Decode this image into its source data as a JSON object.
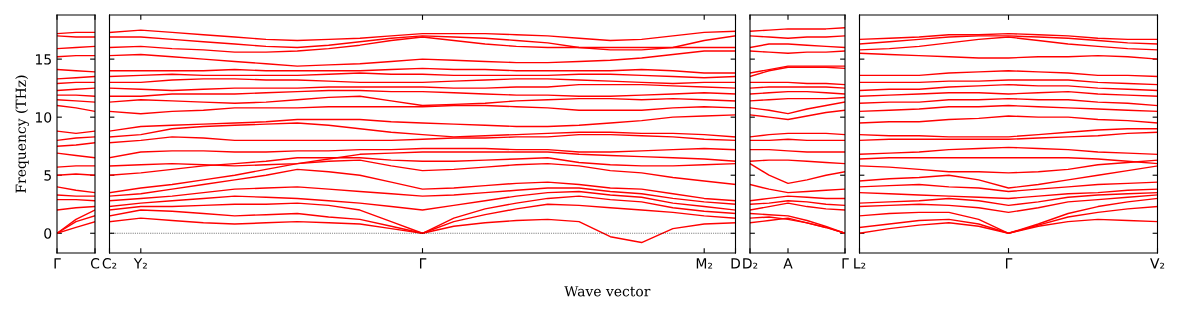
{
  "chart_data": [
    {
      "type": "line",
      "ylabel": "Frequency (THz)",
      "categories": [
        "Γ",
        null,
        "C"
      ],
      "ylim": [
        -1.7,
        18.8
      ],
      "yticks": [
        0,
        5,
        10,
        15
      ],
      "legend": false,
      "grid": false,
      "line_style": "solid",
      "marker": "none",
      "series": [
        {
          "color": "#ff0000",
          "values": [
            0,
            0.5,
            1.0
          ]
        },
        {
          "color": "#ff0000",
          "values": [
            0,
            1.0,
            1.5
          ]
        },
        {
          "color": "#ff0000",
          "values": [
            0,
            1.2,
            2.0
          ]
        },
        {
          "color": "#ff0000",
          "values": [
            2.0,
            2.2,
            2.3
          ]
        },
        {
          "color": "#ff0000",
          "values": [
            2.9,
            2.9,
            2.8
          ]
        },
        {
          "color": "#ff0000",
          "values": [
            3.3,
            3.2,
            3.2
          ]
        },
        {
          "color": "#ff0000",
          "values": [
            4.0,
            3.7,
            3.5
          ]
        },
        {
          "color": "#ff0000",
          "values": [
            5.0,
            5.1,
            5.0
          ]
        },
        {
          "color": "#ff0000",
          "values": [
            5.7,
            5.8,
            5.8
          ]
        },
        {
          "color": "#ff0000",
          "values": [
            6.9,
            6.7,
            6.5
          ]
        },
        {
          "color": "#ff0000",
          "values": [
            7.5,
            7.6,
            7.8
          ]
        },
        {
          "color": "#ff0000",
          "values": [
            8.0,
            8.2,
            8.3
          ]
        },
        {
          "color": "#ff0000",
          "values": [
            8.8,
            8.6,
            8.8
          ]
        },
        {
          "color": "#ff0000",
          "values": [
            11.0,
            10.8,
            10.5
          ]
        },
        {
          "color": "#ff0000",
          "values": [
            11.5,
            11.4,
            11.3
          ]
        },
        {
          "color": "#ff0000",
          "values": [
            11.9,
            11.9,
            11.8
          ]
        },
        {
          "color": "#ff0000",
          "values": [
            12.3,
            12.4,
            12.5
          ]
        },
        {
          "color": "#ff0000",
          "values": [
            12.9,
            13.0,
            13.0
          ]
        },
        {
          "color": "#ff0000",
          "values": [
            13.3,
            13.4,
            13.5
          ]
        },
        {
          "color": "#ff0000",
          "values": [
            14.1,
            14.0,
            13.9
          ]
        },
        {
          "color": "#ff0000",
          "values": [
            15.2,
            15.3,
            15.3
          ]
        },
        {
          "color": "#ff0000",
          "values": [
            15.9,
            16.0,
            16.1
          ]
        },
        {
          "color": "#ff0000",
          "values": [
            17.0,
            16.9,
            16.9
          ]
        },
        {
          "color": "#ff0000",
          "values": [
            17.2,
            17.3,
            17.3
          ]
        }
      ]
    },
    {
      "type": "line",
      "xlabel": "Wave vector",
      "tick_labels": "x",
      "categories": [
        "C₂",
        "Y₂",
        null,
        null,
        null,
        null,
        null,
        null,
        null,
        null,
        "Γ",
        null,
        null,
        null,
        null,
        null,
        null,
        null,
        null,
        "M₂",
        "D"
      ],
      "ylim": [
        -1.7,
        18.8
      ],
      "yticks": [
        0,
        5,
        10,
        15
      ],
      "legend": false,
      "grid": false,
      "line_style": "solid",
      "marker": "none",
      "ref_lines": [
        {
          "axis": "y",
          "value": 0,
          "color": "#000000",
          "line_style": "dotted"
        }
      ],
      "series": [
        {
          "color": "#ff0000",
          "values": [
            1.0,
            1.3,
            1.1,
            0.9,
            0.8,
            0.9,
            1.0,
            0.9,
            0.8,
            0.4,
            0,
            0.6,
            0.9,
            1.1,
            1.2,
            1.0,
            -0.3,
            -0.8,
            0.4,
            0.8,
            0.9
          ]
        },
        {
          "color": "#ff0000",
          "values": [
            1.5,
            2.0,
            1.9,
            1.7,
            1.5,
            1.6,
            1.7,
            1.4,
            1.2,
            0.6,
            0,
            1.0,
            1.6,
            2.1,
            2.5,
            2.4,
            2.2,
            2.0,
            1.8,
            1.5,
            1.3
          ]
        },
        {
          "color": "#ff0000",
          "values": [
            2.0,
            2.3,
            2.3,
            2.4,
            2.5,
            2.5,
            2.6,
            2.4,
            2.0,
            1.0,
            0,
            1.3,
            2.1,
            2.6,
            3.0,
            3.2,
            2.9,
            2.7,
            2.2,
            1.9,
            1.7
          ]
        },
        {
          "color": "#ff0000",
          "values": [
            2.3,
            2.6,
            2.8,
            3.0,
            3.2,
            3.1,
            3.0,
            2.8,
            2.6,
            2.3,
            2.0,
            2.4,
            2.8,
            3.2,
            3.5,
            3.6,
            3.3,
            3.1,
            2.6,
            2.3,
            2.0
          ]
        },
        {
          "color": "#ff0000",
          "values": [
            2.8,
            3.0,
            3.2,
            3.5,
            3.8,
            3.9,
            4.0,
            3.8,
            3.6,
            3.4,
            3.2,
            3.3,
            3.5,
            3.7,
            3.9,
            3.9,
            3.6,
            3.4,
            3.0,
            2.7,
            2.5
          ]
        },
        {
          "color": "#ff0000",
          "values": [
            3.2,
            3.4,
            3.8,
            4.2,
            4.6,
            5.0,
            5.5,
            5.3,
            5.0,
            4.4,
            3.8,
            3.9,
            4.1,
            4.3,
            4.4,
            4.2,
            3.9,
            3.8,
            3.4,
            3.0,
            2.8
          ]
        },
        {
          "color": "#ff0000",
          "values": [
            3.5,
            3.9,
            4.2,
            4.6,
            5.0,
            5.5,
            6.0,
            6.2,
            6.3,
            5.8,
            5.4,
            5.5,
            5.7,
            5.9,
            6.0,
            5.8,
            5.4,
            5.2,
            4.8,
            4.5,
            4.2
          ]
        },
        {
          "color": "#ff0000",
          "values": [
            5.0,
            5.2,
            5.5,
            5.8,
            6.0,
            6.2,
            6.5,
            6.5,
            6.5,
            6.3,
            6.2,
            6.2,
            6.3,
            6.4,
            6.5,
            6.1,
            5.9,
            5.8,
            5.8,
            5.9,
            6.0
          ]
        },
        {
          "color": "#ff0000",
          "values": [
            5.8,
            5.9,
            6.0,
            5.9,
            5.8,
            5.9,
            6.0,
            6.4,
            6.8,
            6.9,
            7.0,
            7.0,
            7.0,
            7.0,
            7.0,
            6.8,
            6.7,
            6.6,
            6.5,
            6.4,
            6.2
          ]
        },
        {
          "color": "#ff0000",
          "values": [
            6.5,
            7.0,
            7.1,
            7.1,
            7.0,
            7.0,
            7.1,
            7.1,
            7.2,
            7.2,
            7.3,
            7.3,
            7.3,
            7.2,
            7.2,
            7.0,
            7.0,
            7.1,
            7.2,
            7.3,
            7.2
          ]
        },
        {
          "color": "#ff0000",
          "values": [
            7.8,
            8.0,
            8.3,
            8.2,
            8.0,
            8.0,
            8.0,
            8.0,
            8.0,
            8.0,
            8.1,
            8.2,
            8.2,
            8.3,
            8.3,
            8.5,
            8.5,
            8.4,
            8.3,
            8.1,
            8.0
          ]
        },
        {
          "color": "#ff0000",
          "values": [
            8.3,
            8.5,
            9.0,
            9.2,
            9.3,
            9.4,
            9.5,
            9.3,
            9.0,
            8.7,
            8.5,
            8.3,
            8.4,
            8.5,
            8.6,
            8.7,
            8.7,
            8.6,
            8.6,
            8.5,
            8.3
          ]
        },
        {
          "color": "#ff0000",
          "values": [
            8.8,
            9.2,
            9.3,
            9.4,
            9.5,
            9.6,
            9.8,
            9.8,
            9.8,
            9.6,
            9.5,
            9.4,
            9.3,
            9.2,
            9.2,
            9.3,
            9.5,
            9.7,
            10.0,
            10.1,
            10.2
          ]
        },
        {
          "color": "#ff0000",
          "values": [
            10.5,
            10.3,
            10.5,
            10.6,
            10.8,
            10.8,
            10.8,
            10.9,
            10.9,
            10.9,
            10.9,
            11.0,
            11.0,
            10.9,
            10.8,
            10.6,
            10.6,
            10.6,
            10.8,
            10.9,
            10.8
          ]
        },
        {
          "color": "#ff0000",
          "values": [
            11.3,
            11.5,
            11.4,
            11.3,
            11.2,
            11.3,
            11.5,
            11.7,
            11.8,
            11.4,
            11.0,
            11.1,
            11.2,
            11.4,
            11.5,
            11.6,
            11.6,
            11.5,
            11.6,
            11.5,
            11.4
          ]
        },
        {
          "color": "#ff0000",
          "values": [
            11.8,
            11.8,
            12.0,
            12.0,
            12.0,
            12.1,
            12.2,
            12.3,
            12.3,
            12.2,
            12.2,
            12.1,
            12.0,
            11.9,
            11.9,
            11.8,
            11.8,
            11.9,
            12.0,
            12.1,
            12.0
          ]
        },
        {
          "color": "#ff0000",
          "values": [
            12.5,
            12.4,
            12.3,
            12.4,
            12.5,
            12.5,
            12.5,
            12.6,
            12.6,
            12.6,
            12.6,
            12.5,
            12.5,
            12.6,
            12.6,
            12.8,
            12.8,
            12.8,
            12.7,
            12.6,
            12.5
          ]
        },
        {
          "color": "#ff0000",
          "values": [
            13.0,
            13.0,
            13.2,
            13.3,
            13.3,
            13.2,
            13.2,
            13.1,
            13.0,
            13.0,
            13.0,
            13.1,
            13.2,
            13.3,
            13.3,
            13.2,
            13.1,
            13.0,
            12.9,
            13.0,
            13.0
          ]
        },
        {
          "color": "#ff0000",
          "values": [
            13.5,
            13.6,
            13.7,
            13.6,
            13.6,
            13.6,
            13.6,
            13.7,
            13.8,
            13.7,
            13.7,
            13.6,
            13.6,
            13.6,
            13.6,
            13.7,
            13.7,
            13.6,
            13.5,
            13.4,
            13.5
          ]
        },
        {
          "color": "#ff0000",
          "values": [
            14.0,
            14.0,
            14.0,
            14.0,
            14.1,
            14.0,
            14.0,
            14.0,
            14.0,
            14.1,
            14.2,
            14.1,
            14.1,
            14.0,
            14.0,
            14.0,
            14.0,
            14.1,
            14.0,
            13.8,
            13.8
          ]
        },
        {
          "color": "#ff0000",
          "values": [
            15.3,
            15.4,
            15.2,
            15.0,
            14.8,
            14.6,
            14.4,
            14.5,
            14.6,
            14.8,
            15.0,
            14.9,
            14.8,
            14.7,
            14.7,
            14.8,
            14.9,
            15.1,
            15.4,
            15.7,
            15.7
          ]
        },
        {
          "color": "#ff0000",
          "values": [
            16.0,
            16.1,
            15.9,
            15.8,
            15.6,
            15.6,
            15.7,
            15.9,
            16.2,
            16.6,
            16.9,
            16.6,
            16.3,
            16.1,
            16.0,
            16.0,
            16.0,
            16.0,
            16.0,
            16.0,
            16.0
          ]
        },
        {
          "color": "#ff0000",
          "values": [
            16.9,
            16.9,
            16.7,
            16.5,
            16.3,
            16.1,
            16.0,
            16.2,
            16.5,
            16.8,
            17.0,
            16.9,
            16.8,
            16.6,
            16.4,
            16.0,
            15.8,
            15.8,
            16.0,
            16.6,
            17.0
          ]
        },
        {
          "color": "#ff0000",
          "values": [
            17.3,
            17.5,
            17.3,
            17.1,
            16.9,
            16.7,
            16.6,
            16.7,
            16.8,
            17.0,
            17.2,
            17.2,
            17.2,
            17.1,
            17.0,
            16.8,
            16.6,
            16.7,
            17.0,
            17.3,
            17.4
          ]
        }
      ]
    },
    {
      "type": "line",
      "tick_labels": "x",
      "categories": [
        "D₂",
        null,
        "A",
        null,
        null,
        "Γ"
      ],
      "ylim": [
        -1.7,
        18.8
      ],
      "yticks": [
        0,
        5,
        10,
        15
      ],
      "legend": false,
      "grid": false,
      "line_style": "solid",
      "marker": "none",
      "series": [
        {
          "color": "#ff0000",
          "values": [
            0.9,
            1.1,
            1.3,
            0.9,
            0.5,
            0
          ]
        },
        {
          "color": "#ff0000",
          "values": [
            1.3,
            1.4,
            1.2,
            0.9,
            0.5,
            0
          ]
        },
        {
          "color": "#ff0000",
          "values": [
            1.7,
            1.6,
            1.5,
            1.1,
            0.6,
            0
          ]
        },
        {
          "color": "#ff0000",
          "values": [
            2.0,
            2.3,
            2.6,
            2.3,
            2.1,
            2.0
          ]
        },
        {
          "color": "#ff0000",
          "values": [
            2.5,
            2.6,
            2.8,
            2.7,
            2.5,
            2.4
          ]
        },
        {
          "color": "#ff0000",
          "values": [
            2.8,
            3.0,
            3.2,
            3.1,
            3.0,
            3.0
          ]
        },
        {
          "color": "#ff0000",
          "values": [
            4.2,
            3.8,
            3.5,
            3.6,
            3.7,
            3.8
          ]
        },
        {
          "color": "#ff0000",
          "values": [
            6.0,
            5.0,
            4.3,
            4.6,
            5.0,
            5.3
          ]
        },
        {
          "color": "#ff0000",
          "values": [
            6.2,
            6.3,
            6.3,
            6.2,
            6.1,
            6.0
          ]
        },
        {
          "color": "#ff0000",
          "values": [
            7.2,
            7.2,
            7.1,
            7.0,
            7.0,
            7.0
          ]
        },
        {
          "color": "#ff0000",
          "values": [
            8.0,
            8.0,
            8.1,
            8.0,
            8.0,
            8.0
          ]
        },
        {
          "color": "#ff0000",
          "values": [
            8.3,
            8.5,
            8.6,
            8.6,
            8.6,
            8.5
          ]
        },
        {
          "color": "#ff0000",
          "values": [
            10.2,
            10.0,
            9.8,
            10.1,
            10.4,
            10.6
          ]
        },
        {
          "color": "#ff0000",
          "values": [
            10.8,
            10.6,
            10.3,
            10.7,
            11.0,
            11.3
          ]
        },
        {
          "color": "#ff0000",
          "values": [
            11.4,
            11.5,
            11.6,
            11.6,
            11.6,
            11.7
          ]
        },
        {
          "color": "#ff0000",
          "values": [
            12.0,
            12.1,
            12.2,
            12.2,
            12.1,
            12.0
          ]
        },
        {
          "color": "#ff0000",
          "values": [
            12.5,
            12.6,
            12.6,
            12.6,
            12.6,
            12.5
          ]
        },
        {
          "color": "#ff0000",
          "values": [
            13.0,
            13.0,
            13.0,
            12.9,
            12.9,
            12.8
          ]
        },
        {
          "color": "#ff0000",
          "values": [
            13.5,
            14.0,
            14.3,
            14.3,
            14.3,
            14.2
          ]
        },
        {
          "color": "#ff0000",
          "values": [
            13.8,
            14.1,
            14.4,
            14.4,
            14.4,
            14.4
          ]
        },
        {
          "color": "#ff0000",
          "values": [
            15.7,
            15.6,
            15.5,
            15.6,
            15.6,
            15.7
          ]
        },
        {
          "color": "#ff0000",
          "values": [
            16.0,
            16.3,
            16.3,
            16.2,
            16.1,
            16.0
          ]
        },
        {
          "color": "#ff0000",
          "values": [
            17.0,
            16.9,
            16.8,
            16.9,
            16.9,
            17.0
          ]
        },
        {
          "color": "#ff0000",
          "values": [
            17.4,
            17.5,
            17.6,
            17.6,
            17.6,
            17.7
          ]
        }
      ]
    },
    {
      "type": "line",
      "tick_labels": "x",
      "categories": [
        "L₂",
        null,
        null,
        null,
        null,
        "Γ",
        null,
        null,
        null,
        null,
        "V₂"
      ],
      "ylim": [
        -1.7,
        18.8
      ],
      "yticks": [
        0,
        5,
        10,
        15
      ],
      "legend": false,
      "grid": false,
      "line_style": "solid",
      "marker": "none",
      "series": [
        {
          "color": "#ff0000",
          "values": [
            0,
            0.4,
            0.7,
            0.9,
            0.6,
            0,
            0.6,
            1.0,
            1.2,
            1.1,
            1.0
          ]
        },
        {
          "color": "#ff0000",
          "values": [
            0.5,
            0.8,
            1.1,
            1.2,
            0.8,
            0,
            0.7,
            1.4,
            1.8,
            2.1,
            2.3
          ]
        },
        {
          "color": "#ff0000",
          "values": [
            1.5,
            1.7,
            1.8,
            1.8,
            1.2,
            0,
            0.8,
            1.7,
            2.3,
            2.7,
            3.0
          ]
        },
        {
          "color": "#ff0000",
          "values": [
            2.3,
            2.4,
            2.5,
            2.4,
            2.2,
            1.8,
            2.2,
            2.7,
            2.9,
            3.1,
            3.3
          ]
        },
        {
          "color": "#ff0000",
          "values": [
            2.6,
            2.7,
            2.8,
            3.0,
            2.8,
            2.4,
            2.7,
            3.1,
            3.3,
            3.4,
            3.5
          ]
        },
        {
          "color": "#ff0000",
          "values": [
            3.5,
            3.4,
            3.3,
            3.2,
            3.1,
            3.0,
            3.2,
            3.4,
            3.5,
            3.7,
            3.8
          ]
        },
        {
          "color": "#ff0000",
          "values": [
            4.0,
            4.1,
            4.2,
            4.0,
            3.9,
            3.6,
            3.8,
            4.0,
            4.2,
            4.3,
            4.4
          ]
        },
        {
          "color": "#ff0000",
          "values": [
            4.5,
            4.7,
            4.8,
            5.0,
            4.6,
            3.9,
            4.2,
            4.6,
            5.0,
            5.4,
            5.8
          ]
        },
        {
          "color": "#ff0000",
          "values": [
            5.8,
            5.7,
            5.5,
            5.3,
            5.3,
            5.2,
            5.3,
            5.5,
            5.9,
            6.1,
            6.3
          ]
        },
        {
          "color": "#ff0000",
          "values": [
            6.4,
            6.5,
            6.5,
            6.5,
            6.5,
            6.5,
            6.5,
            6.5,
            6.4,
            6.2,
            6.0
          ]
        },
        {
          "color": "#ff0000",
          "values": [
            6.8,
            6.9,
            7.0,
            7.2,
            7.3,
            7.4,
            7.3,
            7.2,
            7.0,
            6.9,
            6.8
          ]
        },
        {
          "color": "#ff0000",
          "values": [
            8.0,
            8.1,
            8.1,
            8.1,
            8.1,
            8.1,
            8.2,
            8.3,
            8.4,
            8.6,
            8.7
          ]
        },
        {
          "color": "#ff0000",
          "values": [
            8.5,
            8.4,
            8.4,
            8.3,
            8.3,
            8.3,
            8.5,
            8.7,
            8.9,
            9.0,
            9.0
          ]
        },
        {
          "color": "#ff0000",
          "values": [
            9.5,
            9.6,
            9.6,
            9.8,
            9.9,
            10.1,
            10.0,
            10.0,
            9.8,
            9.7,
            9.5
          ]
        },
        {
          "color": "#ff0000",
          "values": [
            10.5,
            10.6,
            10.7,
            10.9,
            10.9,
            11.0,
            10.9,
            10.8,
            10.7,
            10.6,
            10.5
          ]
        },
        {
          "color": "#ff0000",
          "values": [
            11.2,
            11.3,
            11.3,
            11.5,
            11.5,
            11.6,
            11.5,
            11.5,
            11.3,
            11.2,
            11.0
          ]
        },
        {
          "color": "#ff0000",
          "values": [
            11.8,
            11.9,
            12.0,
            12.1,
            12.1,
            12.0,
            12.1,
            12.2,
            12.0,
            11.9,
            11.8
          ]
        },
        {
          "color": "#ff0000",
          "values": [
            12.3,
            12.4,
            12.4,
            12.6,
            12.7,
            12.8,
            12.7,
            12.7,
            12.5,
            12.4,
            12.3
          ]
        },
        {
          "color": "#ff0000",
          "values": [
            13.0,
            13.0,
            13.0,
            13.1,
            13.1,
            13.2,
            13.2,
            13.2,
            13.0,
            12.9,
            12.8
          ]
        },
        {
          "color": "#ff0000",
          "values": [
            13.6,
            13.6,
            13.6,
            13.8,
            13.9,
            14.0,
            13.9,
            13.8,
            13.6,
            13.6,
            13.5
          ]
        },
        {
          "color": "#ff0000",
          "values": [
            15.5,
            15.4,
            15.3,
            15.2,
            15.1,
            15.1,
            15.2,
            15.2,
            15.3,
            15.2,
            15.0
          ]
        },
        {
          "color": "#ff0000",
          "values": [
            15.8,
            15.9,
            16.1,
            16.4,
            16.7,
            16.9,
            16.6,
            16.3,
            16.1,
            15.9,
            15.8
          ]
        },
        {
          "color": "#ff0000",
          "values": [
            16.3,
            16.5,
            16.7,
            16.9,
            17.0,
            17.0,
            16.9,
            16.8,
            16.6,
            16.4,
            16.3
          ]
        },
        {
          "color": "#ff0000",
          "values": [
            16.7,
            16.8,
            16.9,
            17.1,
            17.1,
            17.2,
            17.1,
            17.0,
            16.8,
            16.7,
            16.7
          ]
        }
      ]
    }
  ]
}
